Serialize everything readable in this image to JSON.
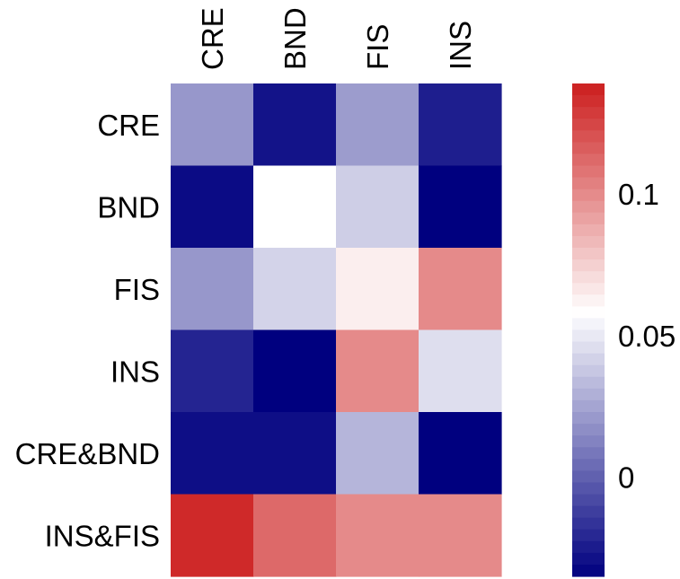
{
  "chart_data": {
    "type": "heatmap",
    "title": "",
    "x_categories": [
      "CRE",
      "BND",
      "FIS",
      "INS"
    ],
    "y_categories": [
      "CRE",
      "BND",
      "FIS",
      "INS",
      "CRE&BND",
      "INS&FIS"
    ],
    "values": [
      [
        0.02,
        -0.028,
        0.022,
        -0.024
      ],
      [
        -0.031,
        0.058,
        0.04,
        -0.04
      ],
      [
        0.02,
        0.042,
        0.064,
        0.1
      ],
      [
        -0.022,
        -0.04,
        0.1,
        0.046
      ],
      [
        -0.03,
        -0.03,
        0.031,
        -0.038
      ],
      [
        0.135,
        0.112,
        0.1,
        0.1
      ]
    ],
    "colorbar": {
      "min": -0.035,
      "max": 0.139,
      "ticks": [
        0,
        0.05,
        0.1
      ],
      "tick_labels": [
        "0",
        "0.05",
        "0.1"
      ],
      "colormap": [
        "#00007f",
        "#ffffff",
        "#cc1e1e"
      ],
      "center": 0.058
    }
  }
}
